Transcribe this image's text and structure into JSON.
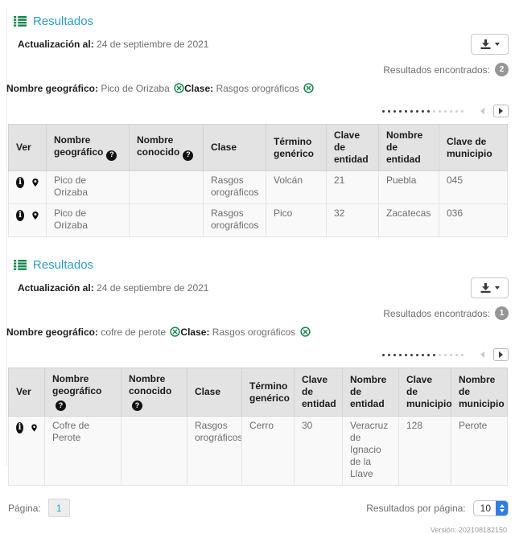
{
  "icons": {
    "help_glyph": "?",
    "info_glyph": "i"
  },
  "colors": {
    "accent_green": "#15854B",
    "title_blue": "#2D9EC1",
    "badge_gray": "#969696",
    "select_blue": "#2f7de1",
    "table_header_bg": "#e3e3e3"
  },
  "sections": [
    {
      "title": "Resultados",
      "update_label": "Actualización al:",
      "update_value": "24 de septiembre de 2021",
      "results_found_label": "Resultados encontrados:",
      "results_found_count": "2",
      "filters": [
        {
          "label": "Nombre geográfico:",
          "value": "Pico de Orizaba"
        },
        {
          "label": "Clase:",
          "value": "Rasgos orográficos"
        }
      ],
      "scroll_indicator": {
        "active": 9,
        "inactive": 6
      },
      "table": {
        "headers": [
          "Ver",
          "Nombre geográfico",
          "Nombre conocido",
          "Clase",
          "Término genérico",
          "Clave de entidad",
          "Nombre de entidad",
          "Clave de municipio"
        ],
        "rows": [
          [
            "Pico de Orizaba",
            "",
            "Rasgos orográficos",
            "Volcán",
            "21",
            "Puebla",
            "045"
          ],
          [
            "Pico de Orizaba",
            "",
            "Rasgos orográficos",
            "Pico",
            "32",
            "Zacatecas",
            "036"
          ]
        ]
      }
    },
    {
      "title": "Resultados",
      "update_label": "Actualización al:",
      "update_value": "24 de septiembre de 2021",
      "results_found_label": "Resultados encontrados:",
      "results_found_count": "1",
      "filters": [
        {
          "label": "Nombre geográfico:",
          "value": "cofre de perote"
        },
        {
          "label": "Clase:",
          "value": "Rasgos orográficos"
        }
      ],
      "scroll_indicator": {
        "active": 10,
        "inactive": 5
      },
      "table": {
        "headers": [
          "Ver",
          "Nombre geográfico",
          "Nombre conocido",
          "Clase",
          "Término genérico",
          "Clave de entidad",
          "Nombre de entidad",
          "Clave de municipio",
          "Nombre de municipio"
        ],
        "rows": [
          [
            "Cofre de Perote",
            "",
            "Rasgos orográficos",
            "Cerro",
            "30",
            "Veracruz de Ignacio de la Llave",
            "128",
            "Perote"
          ]
        ]
      }
    }
  ],
  "footer": {
    "page_label": "Página:",
    "page_value": "1",
    "per_page_label": "Resultados por página:",
    "per_page_value": "10",
    "version": "Versión: 202108182150"
  }
}
